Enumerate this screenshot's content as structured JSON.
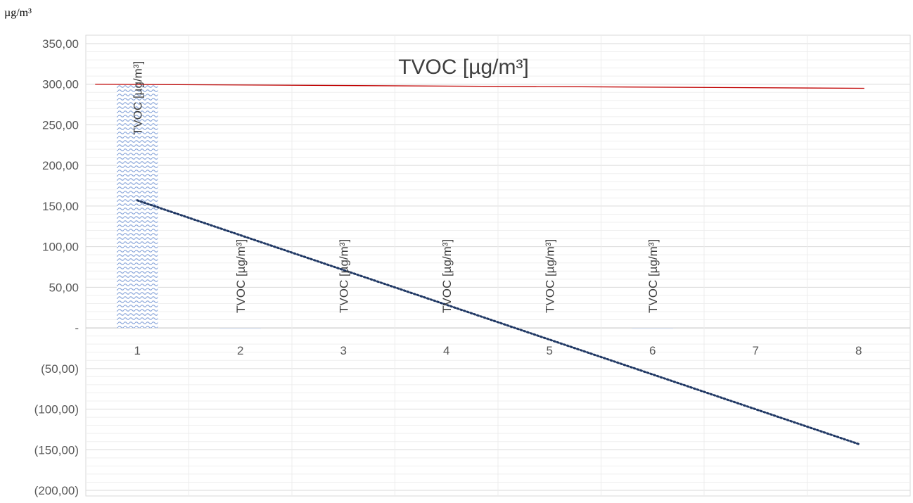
{
  "unit_label": "µg/m³",
  "chart_data": {
    "type": "bar",
    "title": "TVOC [µg/m³]",
    "xlabel": "",
    "ylabel": "",
    "categories": [
      "1",
      "2",
      "3",
      "4",
      "5",
      "6",
      "7",
      "8"
    ],
    "series": [
      {
        "name": "TVOC [µg/m³]",
        "values": [
          300,
          0,
          null,
          null,
          null,
          0,
          null,
          null
        ],
        "data_labels": [
          "TVOC [µg/m³]",
          "TVOC [µg/m³]",
          "TVOC [µg/m³]",
          "TVOC [µg/m³]",
          "TVOC [µg/m³]",
          "TVOC [µg/m³]",
          "",
          ""
        ],
        "color": "#8faadc",
        "pattern": "wave"
      }
    ],
    "reference_line": {
      "x": [
        1,
        8
      ],
      "y": [
        300,
        295
      ],
      "color": "#c00000"
    },
    "trendline": {
      "x": [
        1,
        8
      ],
      "y": [
        157,
        -143
      ],
      "color": "#203864",
      "style": "dotted"
    },
    "ylim": [
      -200,
      350
    ],
    "y_ticks": [
      {
        "value": 350,
        "label": "350,00"
      },
      {
        "value": 300,
        "label": "300,00"
      },
      {
        "value": 250,
        "label": "250,00"
      },
      {
        "value": 200,
        "label": "200,00"
      },
      {
        "value": 150,
        "label": "150,00"
      },
      {
        "value": 100,
        "label": "100,00"
      },
      {
        "value": 50,
        "label": "50,00"
      },
      {
        "value": 0,
        "label": "-"
      },
      {
        "value": -50,
        "label": "(50,00)"
      },
      {
        "value": -100,
        "label": "(100,00)"
      },
      {
        "value": -150,
        "label": "(150,00)"
      },
      {
        "value": -200,
        "label": "(200,00)"
      }
    ],
    "grid": true,
    "legend": "none"
  }
}
